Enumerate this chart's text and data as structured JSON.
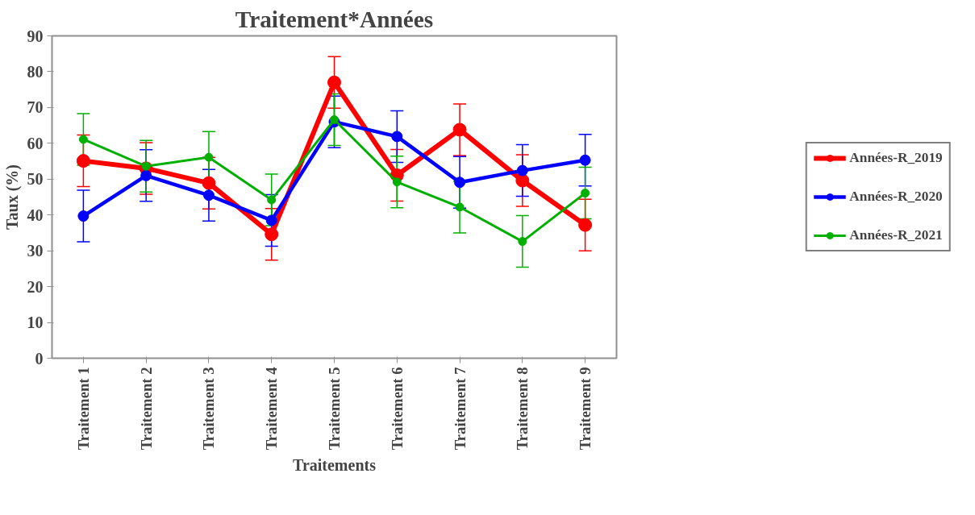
{
  "chart_data": {
    "type": "line",
    "title": "Traitement*Années",
    "xlabel": "Traitements",
    "ylabel": "Taux (%)",
    "categories": [
      "Traitement 1",
      "Traitement 2",
      "Traitement 3",
      "Traitement 4",
      "Traitement 5",
      "Traitement 6",
      "Traitement 7",
      "Traitement 8",
      "Traitement 9"
    ],
    "series": [
      {
        "name": "Années-R_2019",
        "color": "#ff0000",
        "values": [
          55.1,
          53.0,
          48.9,
          34.6,
          77.0,
          51.1,
          63.8,
          49.6,
          37.2
        ],
        "errors": [
          7.2,
          7.2,
          7.2,
          7.2,
          7.2,
          7.2,
          7.2,
          7.2,
          7.2
        ]
      },
      {
        "name": "Années-R_2020",
        "color": "#0000ff",
        "values": [
          39.7,
          51.0,
          45.5,
          38.5,
          66.0,
          61.9,
          49.1,
          52.4,
          55.3
        ],
        "errors": [
          7.2,
          7.2,
          7.2,
          7.2,
          7.2,
          7.2,
          7.2,
          7.2,
          7.2
        ]
      },
      {
        "name": "Années-R_2021",
        "color": "#00b000",
        "values": [
          61.1,
          53.6,
          56.1,
          44.2,
          66.6,
          49.2,
          42.2,
          32.6,
          46.1
        ],
        "errors": [
          7.2,
          7.2,
          7.2,
          7.2,
          7.2,
          7.2,
          7.2,
          7.2,
          7.2
        ]
      }
    ],
    "ylim": [
      0,
      90
    ],
    "yticks": [
      0,
      10,
      20,
      30,
      40,
      50,
      60,
      70,
      80,
      90
    ],
    "grid": false,
    "legend": "right",
    "marker": "circle",
    "line_style": "solid"
  }
}
